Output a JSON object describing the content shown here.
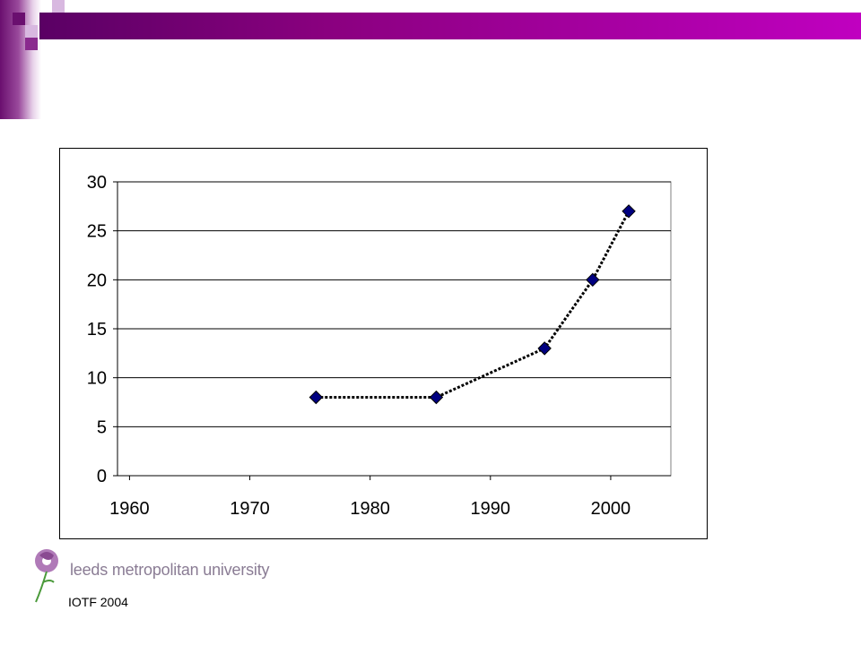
{
  "chart_data": {
    "type": "line",
    "series": [
      {
        "x": [
          1975.5,
          1985.5,
          1994.5,
          1998.5,
          2001.5
        ],
        "values": [
          8,
          8,
          13,
          20,
          27
        ]
      }
    ],
    "xticks": [
      1960,
      1970,
      1980,
      1990,
      2000
    ],
    "yticks": [
      0,
      5,
      10,
      15,
      20,
      25,
      30
    ],
    "xlim": [
      1959,
      2005
    ],
    "ylim": [
      0,
      30
    ],
    "grid": "horizontal",
    "line_style": "dotted",
    "marker": "diamond",
    "colors": {
      "line": "#000000",
      "marker_fill": "#000080",
      "marker_edge": "#000000"
    }
  },
  "footer": {
    "logo_text": "leeds metropolitan university",
    "source": "IOTF 2004"
  },
  "colors": {
    "banner_start": "#5a0064",
    "banner_end": "#c000c0",
    "accent": "#cc99cc"
  }
}
